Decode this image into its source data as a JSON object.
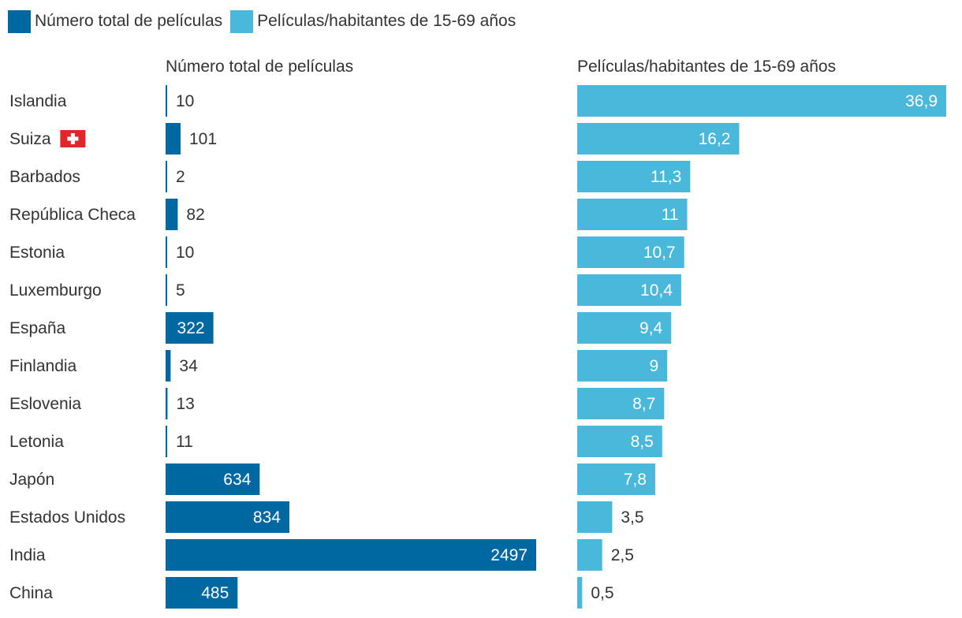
{
  "legend": {
    "items": [
      {
        "label": "Número total de películas",
        "color": "#0068a0"
      },
      {
        "label": "Películas/habitantes de 15-69 años",
        "color": "#4ab8da"
      }
    ]
  },
  "chart_data": {
    "type": "bar",
    "orientation": "horizontal",
    "categories": [
      "Islandia",
      "Suiza",
      "Barbados",
      "República Checa",
      "Estonia",
      "Luxemburgo",
      "España",
      "Finlandia",
      "Eslovenia",
      "Letonia",
      "Japón",
      "Estados Unidos",
      "India",
      "China"
    ],
    "category_flags": {
      "Suiza": "swiss-flag"
    },
    "series": [
      {
        "name": "Número total de películas",
        "title": "Número total de películas",
        "color": "#0068a0",
        "values": [
          10,
          101,
          2,
          82,
          10,
          5,
          322,
          34,
          13,
          11,
          634,
          834,
          2497,
          485
        ],
        "labels": [
          "10",
          "101",
          "2",
          "82",
          "10",
          "5",
          "322",
          "34",
          "13",
          "11",
          "634",
          "834",
          "2497",
          "485"
        ],
        "xlim": [
          0,
          2497
        ]
      },
      {
        "name": "Películas/habitantes de 15-69 años",
        "title": "Películas/habitantes de 15-69 años",
        "color": "#4ab8da",
        "values": [
          36.9,
          16.2,
          11.3,
          11,
          10.7,
          10.4,
          9.4,
          9,
          8.7,
          8.5,
          7.8,
          3.5,
          2.5,
          0.5
        ],
        "labels": [
          "36,9",
          "16,2",
          "11,3",
          "11",
          "10,7",
          "10,4",
          "9,4",
          "9",
          "8,7",
          "8,5",
          "7,8",
          "3,5",
          "2,5",
          "0,5"
        ],
        "xlim": [
          0,
          36.9
        ]
      }
    ],
    "legend_position": "top-left",
    "grid": false
  }
}
